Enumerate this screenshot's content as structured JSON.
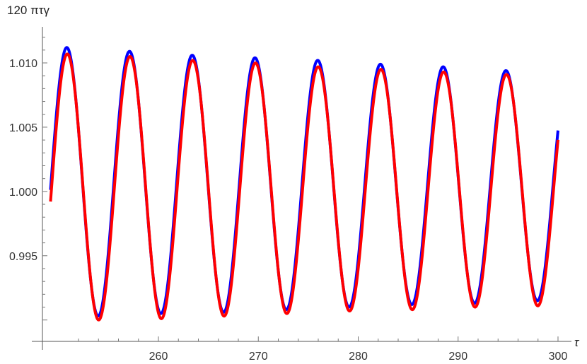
{
  "chart_data": {
    "type": "line",
    "title": "",
    "xlabel": "τ",
    "ylabel": "120 πτγ",
    "xlim": [
      249,
      300
    ],
    "ylim": [
      0.98905,
      1.01275
    ],
    "x_ticks": [
      260,
      270,
      280,
      290,
      300
    ],
    "y_ticks": [
      0.995,
      1.0,
      1.005,
      1.01
    ],
    "y_tick_labels": [
      "0.995",
      "1.000",
      "1.005",
      "1.010"
    ],
    "x_tick_labels": [
      "260",
      "270",
      "280",
      "290",
      "300"
    ],
    "grid": false,
    "legend": "none",
    "series": [
      {
        "color": "#0000ff",
        "x_start": 249.2,
        "x_end": 300,
        "period": 6.28,
        "first_peak_x": 250.83,
        "peaks": [
          [
            250.83,
            1.0112
          ],
          [
            257.11,
            1.0109
          ],
          [
            263.39,
            1.0106
          ],
          [
            269.67,
            1.0104
          ],
          [
            275.95,
            1.0102
          ],
          [
            282.23,
            1.0099
          ],
          [
            288.51,
            1.0097
          ],
          [
            294.79,
            1.0094
          ]
        ],
        "troughs": [
          [
            253.97,
            0.9903
          ],
          [
            260.25,
            0.9905
          ],
          [
            266.53,
            0.9906
          ],
          [
            272.81,
            0.9908
          ],
          [
            279.09,
            0.991
          ],
          [
            285.37,
            0.9912
          ],
          [
            291.65,
            0.9913
          ],
          [
            297.93,
            0.9915
          ]
        ],
        "end_value": 1.0045
      },
      {
        "color": "#ff0000",
        "x_start": 249.2,
        "x_end": 300,
        "period": 6.28,
        "first_peak_x": 250.88,
        "peaks": [
          [
            250.88,
            1.0107
          ],
          [
            257.16,
            1.0105
          ],
          [
            263.44,
            1.0102
          ],
          [
            269.72,
            1.01
          ],
          [
            276.0,
            1.0097
          ],
          [
            282.28,
            1.0095
          ],
          [
            288.56,
            1.0093
          ],
          [
            294.84,
            1.0091
          ]
        ],
        "troughs": [
          [
            254.02,
            0.99
          ],
          [
            260.3,
            0.9901
          ],
          [
            266.58,
            0.9903
          ],
          [
            272.86,
            0.9905
          ],
          [
            279.14,
            0.9907
          ],
          [
            285.42,
            0.9908
          ],
          [
            291.7,
            0.991
          ],
          [
            297.98,
            0.9911
          ]
        ],
        "end_value": 1.0041
      }
    ]
  }
}
